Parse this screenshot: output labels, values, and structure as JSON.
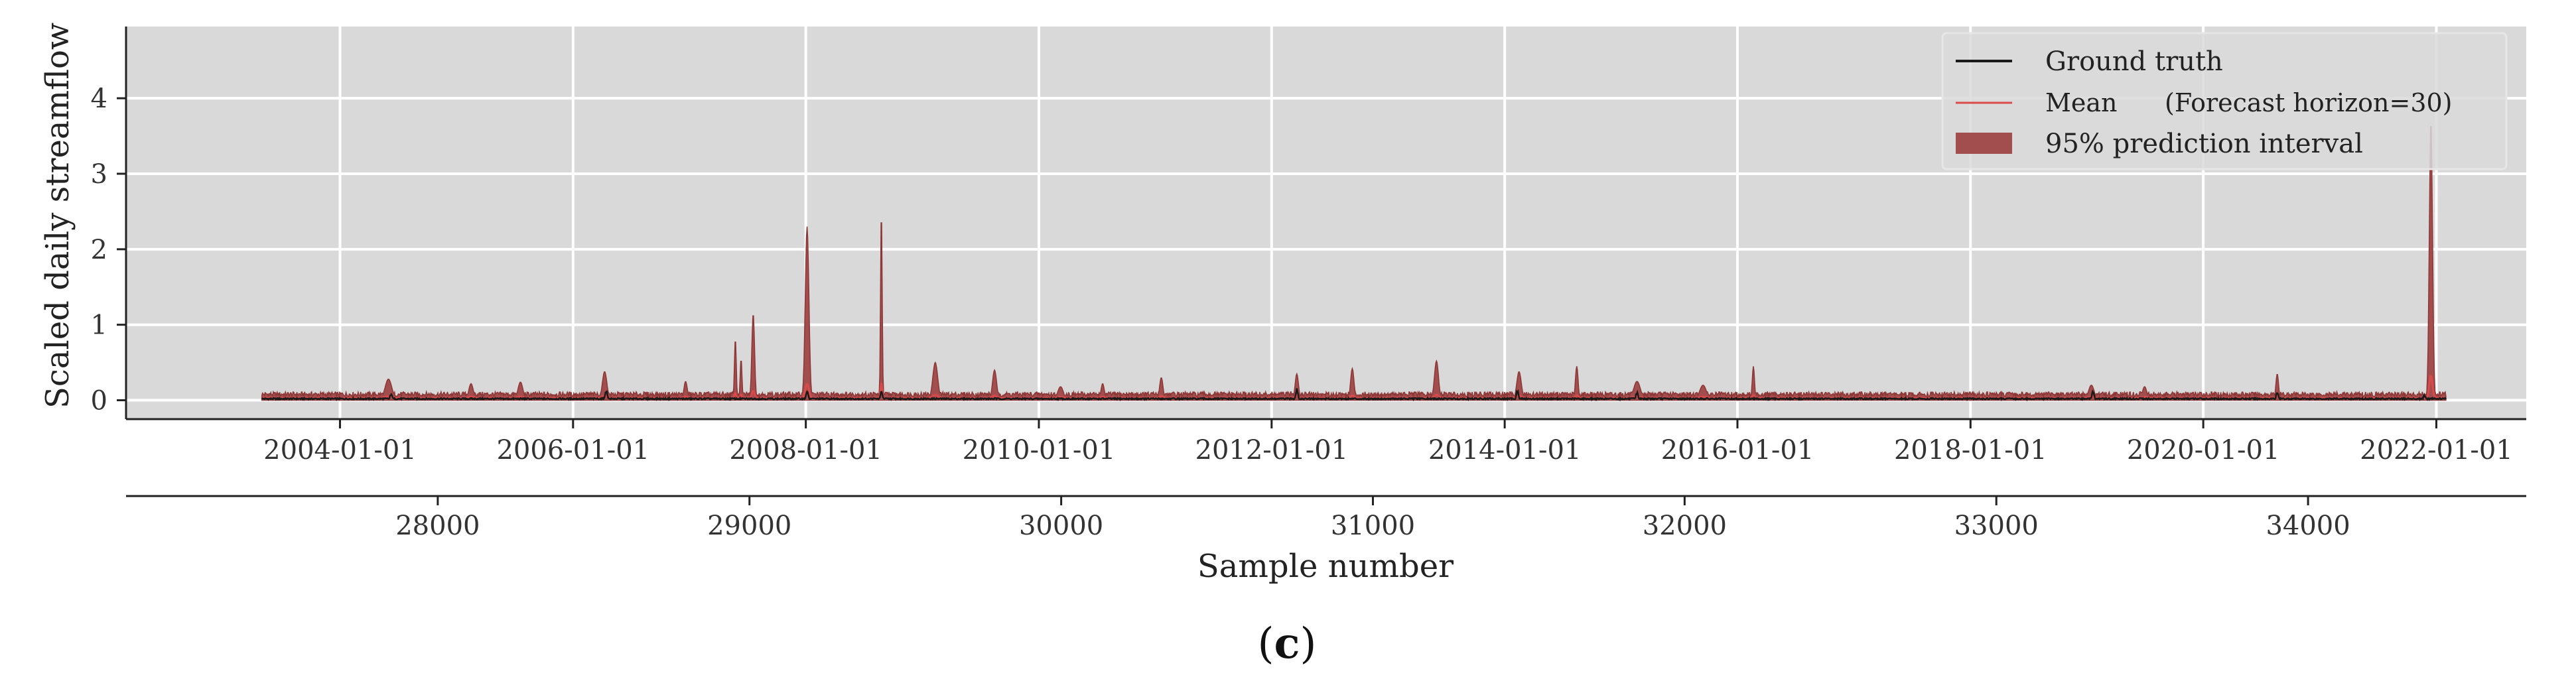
{
  "chart_data": {
    "type": "area",
    "panel_label": {
      "open": "(",
      "letter": "c",
      "close": ")"
    },
    "ylabel": "Scaled daily streamflow",
    "xlabel_bottom": "Sample number",
    "ylim": [
      -0.25,
      4.95
    ],
    "yticks": [
      0,
      1,
      2,
      3,
      4
    ],
    "grid": true,
    "legend_position": "top-right",
    "top_axis": {
      "unit": "date",
      "range": [
        "2002-03-01",
        "2022-10-10"
      ],
      "ticks": [
        "2004-01-01",
        "2006-01-01",
        "2008-01-01",
        "2010-01-01",
        "2012-01-01",
        "2014-01-01",
        "2016-01-01",
        "2018-01-01",
        "2020-01-01",
        "2022-01-01"
      ]
    },
    "bottom_axis": {
      "range": [
        27000,
        34700
      ],
      "ticks": [
        28000,
        29000,
        30000,
        31000,
        32000,
        33000,
        34000
      ]
    },
    "x_start": "2003-05-01",
    "x_end": "2022-02-01",
    "baseline": {
      "ground_truth": 0.02,
      "mean": 0.03,
      "interval_low": 0.0,
      "interval_high": 0.08
    },
    "interval_peaks": [
      {
        "date": "2004-06-01",
        "value": 0.28,
        "width_days": 30
      },
      {
        "date": "2005-02-15",
        "value": 0.22,
        "width_days": 20
      },
      {
        "date": "2005-07-20",
        "value": 0.24,
        "width_days": 22
      },
      {
        "date": "2006-04-10",
        "value": 0.38,
        "width_days": 20
      },
      {
        "date": "2006-12-20",
        "value": 0.25,
        "width_days": 15
      },
      {
        "date": "2007-05-25",
        "value": 0.82,
        "width_days": 8
      },
      {
        "date": "2007-06-12",
        "value": 0.55,
        "width_days": 8
      },
      {
        "date": "2007-07-20",
        "value": 1.15,
        "width_days": 12
      },
      {
        "date": "2008-01-05",
        "value": 2.3,
        "width_days": 16
      },
      {
        "date": "2008-08-25",
        "value": 2.55,
        "width_days": 7
      },
      {
        "date": "2009-02-10",
        "value": 0.5,
        "width_days": 22
      },
      {
        "date": "2009-08-15",
        "value": 0.4,
        "width_days": 18
      },
      {
        "date": "2010-03-10",
        "value": 0.18,
        "width_days": 25
      },
      {
        "date": "2010-07-20",
        "value": 0.22,
        "width_days": 15
      },
      {
        "date": "2011-01-20",
        "value": 0.3,
        "width_days": 15
      },
      {
        "date": "2012-03-20",
        "value": 0.35,
        "width_days": 15
      },
      {
        "date": "2012-09-10",
        "value": 0.42,
        "width_days": 15
      },
      {
        "date": "2013-06-01",
        "value": 0.52,
        "width_days": 18
      },
      {
        "date": "2014-02-15",
        "value": 0.38,
        "width_days": 20
      },
      {
        "date": "2014-08-15",
        "value": 0.45,
        "width_days": 12
      },
      {
        "date": "2015-02-20",
        "value": 0.25,
        "width_days": 30
      },
      {
        "date": "2015-09-15",
        "value": 0.2,
        "width_days": 30
      },
      {
        "date": "2016-02-20",
        "value": 0.45,
        "width_days": 10
      },
      {
        "date": "2019-01-15",
        "value": 0.2,
        "width_days": 25
      },
      {
        "date": "2019-07-01",
        "value": 0.18,
        "width_days": 20
      },
      {
        "date": "2020-08-20",
        "value": 0.35,
        "width_days": 12
      },
      {
        "date": "2023-01-01",
        "value": 0.0,
        "width_days": 1
      }
    ],
    "ground_truth_spikes": [
      {
        "date": "2004-06-10",
        "value": 0.12
      },
      {
        "date": "2006-04-15",
        "value": 0.15
      },
      {
        "date": "2008-01-05",
        "value": 0.14
      },
      {
        "date": "2008-08-25",
        "value": 0.12
      },
      {
        "date": "2012-03-20",
        "value": 0.18
      },
      {
        "date": "2014-02-10",
        "value": 0.14
      },
      {
        "date": "2015-02-20",
        "value": 0.12
      },
      {
        "date": "2019-01-20",
        "value": 0.14
      },
      {
        "date": "2020-08-20",
        "value": 0.12
      },
      {
        "date": "2021-11-25",
        "value": 0.08
      }
    ],
    "final_peak": {
      "date": "2021-12-15",
      "value": 3.7,
      "width_days": 14
    },
    "legend": [
      {
        "name": "Ground truth",
        "style": "line",
        "color": "#1a1a1a"
      },
      {
        "name": "Mean",
        "style": "line",
        "color": "#d94a4a",
        "note": "(Forecast horizon=30)"
      },
      {
        "name": "95% prediction interval",
        "style": "patch",
        "color": "#a34e4e"
      }
    ],
    "colors": {
      "plot_background": "#d9d9d9",
      "grid": "#ffffff",
      "interval_fill": "#a34e4e",
      "interval_edge": "#8c3636",
      "mean_line": "#d94a4a",
      "ground_truth_line": "#1a1a1a"
    }
  }
}
